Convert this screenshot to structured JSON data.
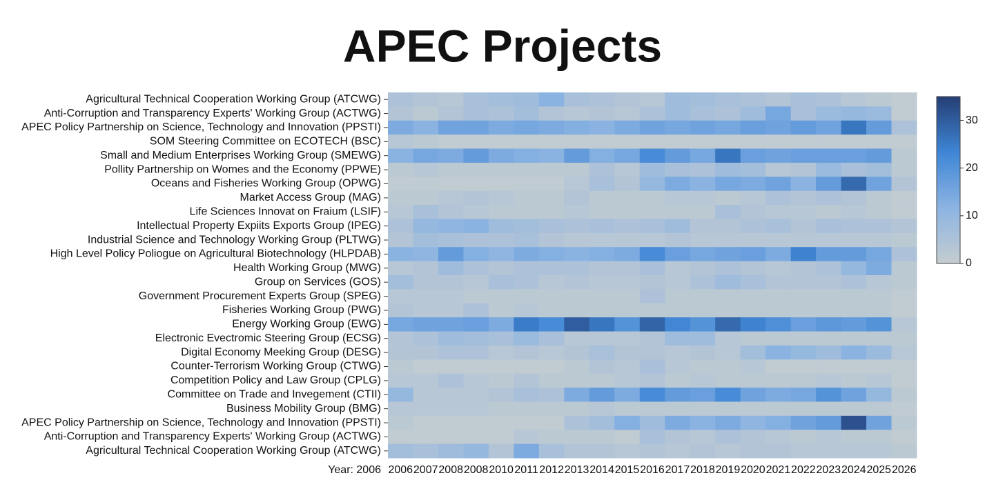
{
  "chart_data": {
    "type": "heatmap",
    "title": "APEC Projects",
    "xlabel": "Year: 2006",
    "x": [
      "2006",
      "2007",
      "2008",
      "2008",
      "2010",
      "2011",
      "2012",
      "2013",
      "2014",
      "2015",
      "2016",
      "2017",
      "2018",
      "2019",
      "2020",
      "2021",
      "2022",
      "2023",
      "2024",
      "2025",
      "2026"
    ],
    "categories": [
      "Agricultural Technical Cooperation Working Group (ATCWG)",
      "Anti-Corruption and Transparency Experts' Working Group (ACTWG)",
      "APEC Policy Partnership on Science, Technology and Innovation (PPSTI)",
      "SOM Steering Committee on ECOTECH (BSC)",
      "Small and Medium Enterprises Working Group (SMEWG)",
      "Pollity Partnership on Womes and the Economy (PPWE)",
      "Oceans and Fisheries Working Group (OPWG)",
      "Market Access Group (MAG)",
      "Life Sciences Innovat on Fraium (LSIF)",
      "Intellectual Property Expiits Exports Group (IPEG)",
      "Industrial Science and Technology Working Group (PLTWG)",
      "High Level Policy Poliogue on Agricultural Biotechnology (HLPDAB)",
      "Health Working Group (MWG)",
      "Group on Services (GOS)",
      "Government Procurement Experts Group (SPEG)",
      "Fisheries Working Group (PWG)",
      "Energy Working Group (EWG)",
      "Electronic Evectromic Steering Group (ECSG)",
      "Digital Economy Meeking Group (DESG)",
      "Counter-Terrorism Working Group (CTWG)",
      "Competition Policy and Law Group (CPLG)",
      "Committee on Trade and Invegement (CTII)",
      "Business Mobility Group (BMG)",
      "APEC Policy Partnership on Science, Technology and Innovation (PPSTI)",
      "Anti-Corruption and Transparency Experts' Working Group (ACTWG)",
      "Agricultural Technical Cooperation Working Group (ATCWG)"
    ],
    "values": [
      [
        5,
        4,
        3,
        6,
        7,
        8,
        12,
        6,
        5,
        4,
        3,
        8,
        7,
        6,
        5,
        4,
        6,
        5,
        3,
        2,
        1
      ],
      [
        4,
        2,
        4,
        6,
        5,
        7,
        4,
        3,
        4,
        3,
        5,
        8,
        6,
        5,
        8,
        15,
        6,
        9,
        10,
        9,
        1
      ],
      [
        14,
        12,
        16,
        16,
        14,
        15,
        14,
        13,
        12,
        14,
        16,
        15,
        16,
        15,
        17,
        16,
        18,
        16,
        26,
        18,
        5
      ],
      [
        3,
        2,
        1,
        1,
        1,
        1,
        1,
        1,
        1,
        1,
        1,
        1,
        1,
        1,
        1,
        1,
        1,
        1,
        1,
        1,
        1
      ],
      [
        12,
        15,
        14,
        18,
        14,
        13,
        12,
        18,
        13,
        15,
        22,
        18,
        15,
        26,
        17,
        16,
        17,
        17,
        17,
        18,
        2
      ],
      [
        2,
        3,
        2,
        2,
        2,
        2,
        2,
        2,
        5,
        3,
        8,
        6,
        5,
        8,
        7,
        3,
        4,
        9,
        6,
        7,
        2
      ],
      [
        1,
        1,
        1,
        1,
        1,
        1,
        1,
        3,
        6,
        4,
        10,
        14,
        12,
        15,
        14,
        16,
        12,
        18,
        28,
        16,
        4
      ],
      [
        2,
        2,
        3,
        4,
        3,
        2,
        2,
        4,
        2,
        2,
        2,
        3,
        3,
        2,
        3,
        5,
        4,
        5,
        4,
        2,
        1
      ],
      [
        3,
        6,
        4,
        3,
        2,
        2,
        2,
        3,
        2,
        2,
        2,
        2,
        2,
        6,
        4,
        3,
        3,
        2,
        3,
        2,
        1
      ],
      [
        5,
        10,
        11,
        12,
        8,
        7,
        6,
        5,
        6,
        5,
        6,
        8,
        4,
        4,
        5,
        6,
        4,
        6,
        5,
        5,
        4
      ],
      [
        4,
        7,
        6,
        5,
        5,
        6,
        4,
        3,
        3,
        3,
        3,
        4,
        3,
        3,
        3,
        3,
        3,
        3,
        3,
        3,
        2
      ],
      [
        12,
        11,
        18,
        13,
        11,
        14,
        13,
        12,
        13,
        14,
        22,
        17,
        15,
        16,
        17,
        14,
        24,
        18,
        18,
        15,
        5
      ],
      [
        3,
        4,
        8,
        5,
        4,
        5,
        5,
        5,
        4,
        4,
        6,
        3,
        4,
        5,
        4,
        3,
        4,
        5,
        10,
        14,
        2
      ],
      [
        7,
        4,
        4,
        3,
        6,
        5,
        3,
        4,
        3,
        3,
        4,
        3,
        5,
        8,
        6,
        4,
        4,
        4,
        5,
        3,
        2
      ],
      [
        3,
        3,
        3,
        2,
        2,
        2,
        2,
        2,
        2,
        2,
        5,
        2,
        2,
        2,
        2,
        2,
        2,
        2,
        2,
        2,
        1
      ],
      [
        4,
        3,
        3,
        5,
        2,
        3,
        2,
        2,
        2,
        2,
        2,
        2,
        2,
        2,
        2,
        2,
        2,
        2,
        2,
        2,
        1
      ],
      [
        15,
        16,
        16,
        17,
        14,
        25,
        22,
        30,
        26,
        20,
        29,
        23,
        20,
        28,
        24,
        21,
        17,
        19,
        18,
        20,
        3
      ],
      [
        4,
        5,
        8,
        7,
        6,
        9,
        6,
        3,
        3,
        3,
        4,
        8,
        8,
        3,
        2,
        2,
        2,
        2,
        2,
        2,
        2
      ],
      [
        4,
        4,
        5,
        5,
        3,
        4,
        3,
        4,
        6,
        4,
        4,
        3,
        4,
        3,
        7,
        12,
        10,
        8,
        12,
        9,
        3
      ],
      [
        2,
        1,
        1,
        1,
        1,
        1,
        1,
        2,
        4,
        3,
        6,
        3,
        2,
        2,
        3,
        1,
        1,
        1,
        1,
        1,
        1
      ],
      [
        3,
        3,
        5,
        3,
        2,
        4,
        2,
        2,
        2,
        3,
        4,
        2,
        3,
        2,
        2,
        2,
        2,
        3,
        2,
        3,
        1
      ],
      [
        10,
        3,
        3,
        3,
        4,
        6,
        5,
        14,
        18,
        14,
        22,
        18,
        17,
        22,
        16,
        14,
        15,
        20,
        16,
        10,
        2
      ],
      [
        3,
        3,
        3,
        3,
        2,
        2,
        2,
        2,
        3,
        2,
        2,
        2,
        2,
        2,
        2,
        2,
        2,
        2,
        2,
        2,
        1
      ],
      [
        2,
        1,
        1,
        1,
        1,
        1,
        1,
        5,
        7,
        13,
        8,
        14,
        12,
        14,
        11,
        13,
        16,
        18,
        32,
        16,
        2
      ],
      [
        1,
        1,
        1,
        1,
        1,
        3,
        2,
        2,
        2,
        1,
        6,
        4,
        3,
        5,
        4,
        3,
        2,
        3,
        2,
        2,
        1
      ],
      [
        7,
        6,
        8,
        10,
        4,
        14,
        6,
        4,
        4,
        3,
        4,
        3,
        4,
        3,
        4,
        4,
        3,
        3,
        3,
        3,
        2
      ]
    ],
    "clim": [
      0,
      35
    ],
    "cticks": [
      0,
      10,
      20,
      30
    ],
    "colorscale": [
      "#c5cdd0",
      "#8db4e2",
      "#3f86d6",
      "#253f75"
    ]
  }
}
